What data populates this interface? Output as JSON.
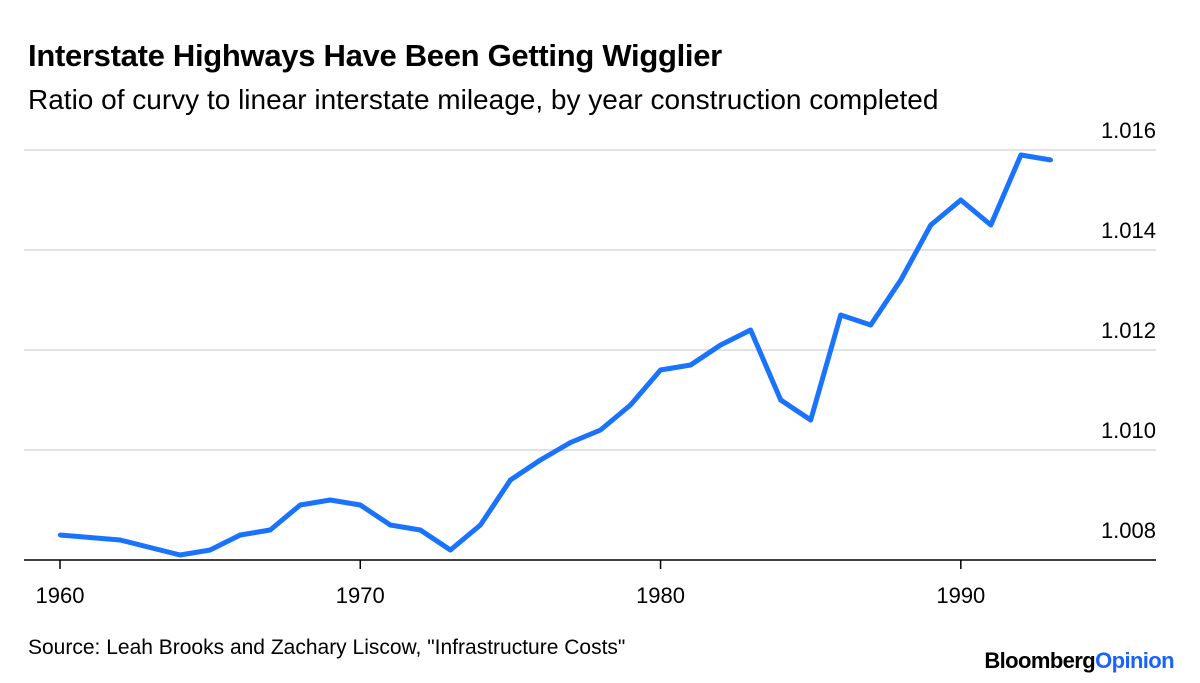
{
  "chart_data": {
    "type": "line",
    "title": "Interstate Highways Have Been Getting Wigglier",
    "subtitle": "Ratio of curvy to linear interstate mileage, by year construction completed",
    "xlabel": "",
    "ylabel": "",
    "x_ticks": [
      "1960",
      "1970",
      "1980",
      "1990"
    ],
    "y_ticks": [
      "1.008",
      "1.010",
      "1.012",
      "1.014",
      "1.016"
    ],
    "xlim": [
      1960,
      1996.5
    ],
    "ylim": [
      1.0078,
      1.0162
    ],
    "grid": true,
    "line_color": "#1a73ff",
    "series": [
      {
        "x": [
          1960,
          1961,
          1962,
          1963,
          1964,
          1965,
          1966,
          1967,
          1968,
          1969,
          1970,
          1971,
          1972,
          1973,
          1974,
          1975,
          1976,
          1977,
          1978,
          1979,
          1980,
          1981,
          1982,
          1983,
          1984,
          1985,
          1986,
          1987,
          1988,
          1989,
          1990,
          1991,
          1992,
          1993
        ],
        "values": [
          1.0083,
          1.00825,
          1.0082,
          1.00805,
          1.0079,
          1.008,
          1.0083,
          1.0084,
          1.0089,
          1.009,
          1.0089,
          1.0085,
          1.0084,
          1.008,
          1.0085,
          1.0094,
          1.0098,
          1.01015,
          1.0104,
          1.0109,
          1.0116,
          1.0117,
          1.0121,
          1.0124,
          1.011,
          1.0106,
          1.0127,
          1.0125,
          1.0134,
          1.0145,
          1.015,
          1.0145,
          1.0159,
          1.0158
        ]
      }
    ]
  },
  "footer": {
    "source": "Source: Leah Brooks and Zachary Liscow, \"Infrastructure Costs\"",
    "brand_part1": "Bloomberg",
    "brand_part2": "Opinion"
  }
}
